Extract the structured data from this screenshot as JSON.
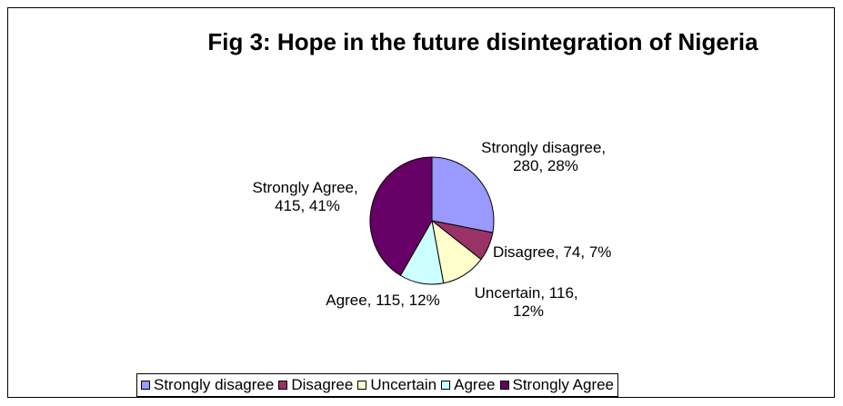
{
  "chart_data": {
    "type": "pie",
    "title": "Fig 3: Hope in the future disintegration of Nigeria",
    "slices": [
      {
        "label": "Strongly disagree",
        "value": 280,
        "percent": "28%",
        "color": "#9999ff",
        "label_lines": [
          "Strongly disagree,",
          "280, 28%"
        ]
      },
      {
        "label": "Disagree",
        "value": 74,
        "percent": "7%",
        "color": "#993366",
        "label_lines": [
          "Disagree, 74, 7%"
        ]
      },
      {
        "label": "Uncertain",
        "value": 116,
        "percent": "12%",
        "color": "#ffffcc",
        "label_lines": [
          "Uncertain, 116,",
          "12%"
        ]
      },
      {
        "label": "Agree",
        "value": 115,
        "percent": "12%",
        "color": "#ccffff",
        "label_lines": [
          "Agree, 115, 12%"
        ]
      },
      {
        "label": "Strongly Agree",
        "value": 415,
        "percent": "41%",
        "color": "#660066",
        "label_lines": [
          "Strongly Agree,",
          "415, 41%"
        ]
      }
    ],
    "legend": {
      "position": "bottom",
      "entries": [
        "Strongly disagree",
        "Disagree",
        "Uncertain",
        "Agree",
        "Strongly Agree"
      ]
    }
  }
}
